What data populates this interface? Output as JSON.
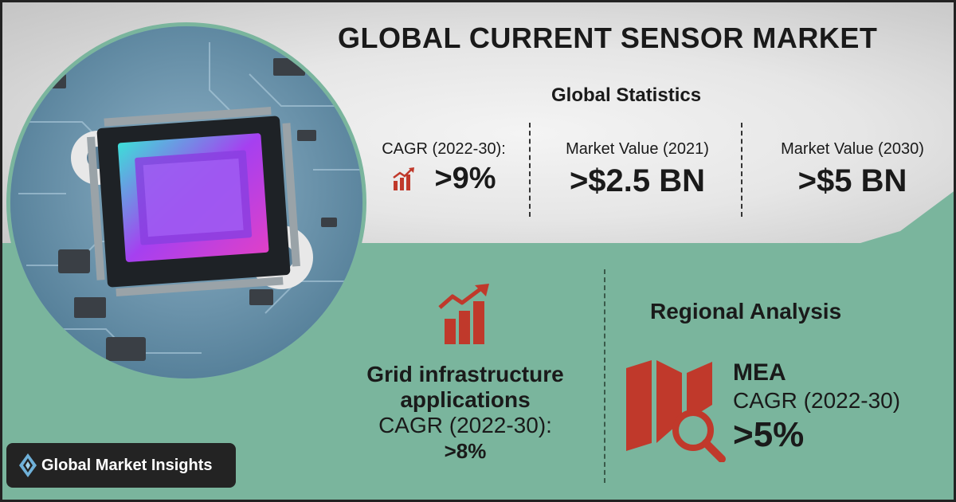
{
  "title": "GLOBAL CURRENT SENSOR MARKET",
  "subtitle": "Global Statistics",
  "stats": [
    {
      "label": "CAGR (2022-30):",
      "value": ">9%"
    },
    {
      "label": "Market Value (2021)",
      "value": ">$2.5 BN"
    },
    {
      "label": "Market Value (2030)",
      "value": ">$5 BN"
    }
  ],
  "segment": {
    "name_line1": "Grid infrastructure",
    "name_line2": "applications",
    "cagr_label": "CAGR (2022-30):",
    "cagr_value": ">8%"
  },
  "regional": {
    "title": "Regional Analysis",
    "region": "MEA",
    "cagr_label": "CAGR (2022-30)",
    "cagr_value": ">5%"
  },
  "brand": {
    "name": "Global Market Insights"
  },
  "colors": {
    "accent": "#c0392b",
    "teal": "#7ab59d",
    "dark": "#232323"
  },
  "icons": [
    "growth-chart-icon",
    "map-search-icon",
    "circuit-chip-image",
    "logo-diamond-icon"
  ]
}
